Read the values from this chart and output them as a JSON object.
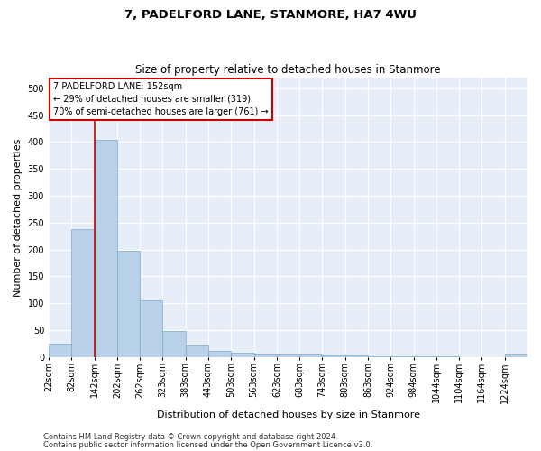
{
  "title": "7, PADELFORD LANE, STANMORE, HA7 4WU",
  "subtitle": "Size of property relative to detached houses in Stanmore",
  "xlabel": "Distribution of detached houses by size in Stanmore",
  "ylabel": "Number of detached properties",
  "bar_values": [
    25,
    238,
    405,
    197,
    105,
    48,
    22,
    11,
    7,
    4,
    4,
    4,
    3,
    2,
    1,
    1,
    1,
    1,
    0,
    0,
    5
  ],
  "bar_labels": [
    "22sqm",
    "82sqm",
    "142sqm",
    "202sqm",
    "262sqm",
    "323sqm",
    "383sqm",
    "443sqm",
    "503sqm",
    "563sqm",
    "623sqm",
    "683sqm",
    "743sqm",
    "803sqm",
    "863sqm",
    "924sqm",
    "984sqm",
    "1044sqm",
    "1104sqm",
    "1164sqm",
    "1224sqm"
  ],
  "bar_color": "#b8d0e8",
  "bar_edge_color": "#7aaac8",
  "vline_color": "#cc0000",
  "annotation_text": "7 PADELFORD LANE: 152sqm\n← 29% of detached houses are smaller (319)\n70% of semi-detached houses are larger (761) →",
  "annotation_box_color": "#ffffff",
  "annotation_box_edge_color": "#cc0000",
  "ylim": [
    0,
    520
  ],
  "yticks": [
    0,
    50,
    100,
    150,
    200,
    250,
    300,
    350,
    400,
    450,
    500
  ],
  "background_color": "#e8eef8",
  "footer_line1": "Contains HM Land Registry data © Crown copyright and database right 2024.",
  "footer_line2": "Contains public sector information licensed under the Open Government Licence v3.0.",
  "title_fontsize": 9.5,
  "subtitle_fontsize": 8.5,
  "xlabel_fontsize": 8,
  "ylabel_fontsize": 8,
  "tick_fontsize": 7,
  "annotation_fontsize": 7,
  "footer_fontsize": 6
}
